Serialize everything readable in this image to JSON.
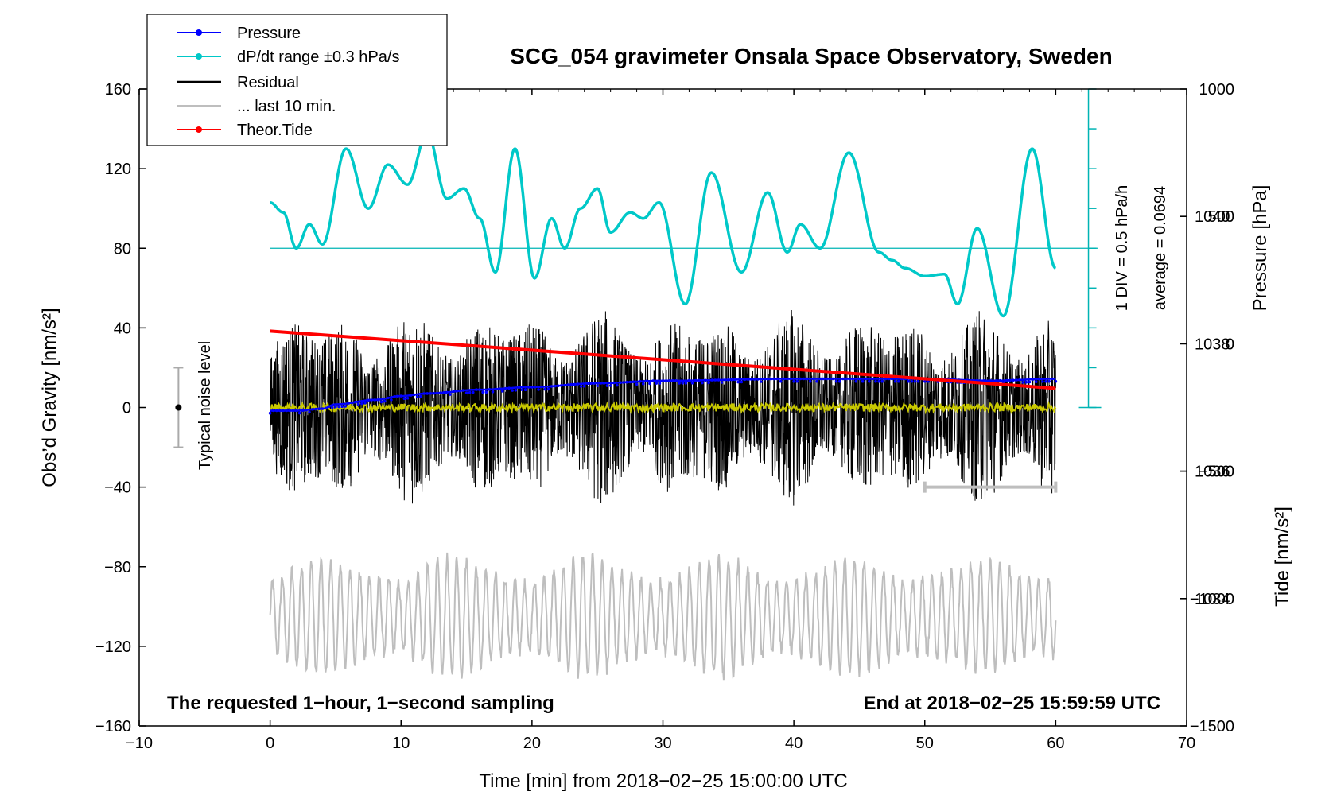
{
  "chart_data": {
    "type": "line",
    "title": "SCG_054 gravimeter Onsala Space Observatory, Sweden",
    "xlabel": "Time [min] from 2018−02−25 15:00:00 UTC",
    "ylabel_left": "Obs’d Gravity [nm/s²]",
    "ylabel_right_pressure": "Pressure [hPa]",
    "ylabel_right_tide": "Tide [nm/s²]",
    "xlim": [
      -10,
      70
    ],
    "ylim_left": [
      -160,
      160
    ],
    "ylim_pressure": [
      1032,
      1042
    ],
    "ylim_tide": [
      -1500,
      1000
    ],
    "x_ticks": [
      -10,
      0,
      10,
      20,
      30,
      40,
      50,
      60,
      70
    ],
    "x_tick_labels": [
      "−10",
      "0",
      "10",
      "20",
      "30",
      "40",
      "50",
      "60",
      "70"
    ],
    "y_ticks_left": [
      -160,
      -120,
      -80,
      -40,
      0,
      40,
      80,
      120,
      160
    ],
    "y_tick_labels_left": [
      "−160",
      "−120",
      "−80",
      "−40",
      "0",
      "40",
      "80",
      "120",
      "160"
    ],
    "pressure_ticks": [
      1034,
      1036,
      1038,
      1040
    ],
    "pressure_tick_labels": [
      "1034",
      "1036",
      "1038",
      "1040"
    ],
    "tide_ticks": [
      -1500,
      -1000,
      -500,
      0,
      500,
      1000
    ],
    "tide_tick_labels": [
      "−1500",
      "−1000",
      "−500",
      "0",
      "500",
      "1000"
    ],
    "legend": {
      "position": "top-left",
      "entries": [
        {
          "label": "Pressure",
          "color": "#0000ff",
          "marker": true
        },
        {
          "label": "dP/dt range ±0.3 hPa/s",
          "color": "#00c8c8",
          "marker": true
        },
        {
          "label": "Residual",
          "color": "#000000",
          "marker": false
        },
        {
          "label": "... last 10 min.",
          "color": "#bebebe",
          "marker": false
        },
        {
          "label": "Theor.Tide",
          "color": "#ff0000",
          "marker": true
        }
      ]
    },
    "series": [
      {
        "name": "Pressure",
        "axis": "pressure",
        "color": "#0000ff",
        "x": [
          0,
          2,
          4,
          5,
          8,
          10,
          12,
          16,
          20,
          25,
          30,
          40,
          50,
          55,
          60
        ],
        "values": [
          1036.95,
          1036.95,
          1036.98,
          1037.05,
          1037.12,
          1037.18,
          1037.22,
          1037.28,
          1037.32,
          1037.38,
          1037.42,
          1037.45,
          1037.45,
          1037.42,
          1037.45
        ]
      },
      {
        "name": "dP/dt range",
        "axis": "left",
        "color": "#00c8c8",
        "x": [
          0,
          1,
          2,
          3,
          4,
          5.8,
          7.5,
          9,
          10.5,
          12,
          13.5,
          14.8,
          16,
          17.2,
          18.7,
          20.2,
          21.5,
          22.5,
          23.7,
          25,
          26,
          27.5,
          28.5,
          29.7,
          31.7,
          33.7,
          36,
          38,
          39.5,
          40.5,
          42,
          44.2,
          46.5,
          47.5,
          48.5,
          50,
          51.5,
          52.5,
          54,
          56,
          58.2,
          60
        ],
        "values": [
          103,
          98,
          80,
          92,
          82,
          130,
          100,
          122,
          112,
          138,
          105,
          110,
          95,
          68,
          130,
          65,
          95,
          80,
          100,
          110,
          88,
          98,
          95,
          103,
          52,
          118,
          68,
          108,
          78,
          92,
          80,
          128,
          78,
          74,
          70,
          66,
          67,
          52,
          90,
          46,
          130,
          70
        ]
      },
      {
        "name": "Residual",
        "axis": "left",
        "color": "#000000",
        "amplitude": 45
      },
      {
        "name": "Mean residual",
        "axis": "left",
        "color": "#c8c800",
        "amplitude": 2
      },
      {
        "name": "... last 10 min.",
        "axis": "left",
        "color": "#bebebe",
        "x": [
          50,
          60
        ],
        "values": [
          -40,
          -40
        ]
      },
      {
        "name": "Theor.Tide",
        "axis": "tide",
        "color": "#ff0000",
        "x": [
          0,
          60
        ],
        "values": [
          50,
          -175
        ]
      },
      {
        "name": "Tide grey trace",
        "axis": "left",
        "color": "#bebebe",
        "center": -105,
        "amplitude": 30
      }
    ],
    "noise_bar": {
      "x": -7,
      "center": 0,
      "range": [
        -20,
        20
      ]
    },
    "pressure_scale_bar": {
      "x": 62.5,
      "range": [
        0,
        160
      ],
      "label": "1 DIV = 0.5 hPa/h",
      "average_label": "average = 0.0694",
      "average_level": 80
    }
  },
  "annotations": {
    "footer_left": "The requested 1−hour, 1−second sampling",
    "footer_right": "End at 2018−02−25 15:59:59 UTC",
    "noise_label": "Typical noise level"
  }
}
